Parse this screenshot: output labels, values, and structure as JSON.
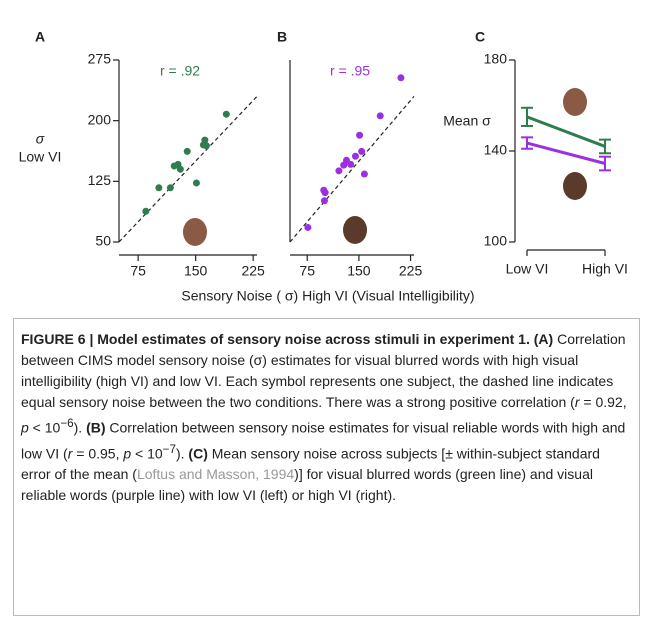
{
  "chart_data": [
    {
      "type": "scatter",
      "panel_label": "A",
      "annotation": "r = .92",
      "ylabel": [
        "σ",
        "Low VI"
      ],
      "color": "#2e7d4f",
      "identity_line": true,
      "xlim": [
        50,
        230
      ],
      "ylim": [
        50,
        275
      ],
      "xticks": [
        75,
        150,
        225
      ],
      "yticks": [
        50,
        125,
        200,
        275
      ],
      "x": [
        85,
        102,
        117,
        122,
        127,
        130,
        139,
        151,
        160,
        162,
        164,
        190
      ],
      "values": [
        88,
        117,
        117,
        144,
        146,
        140,
        162,
        123,
        170,
        176,
        169,
        208
      ]
    },
    {
      "type": "scatter",
      "panel_label": "B",
      "annotation": "r = .95",
      "color": "#9b30e0",
      "identity_line": true,
      "xlim": [
        50,
        230
      ],
      "ylim": [
        50,
        275
      ],
      "xticks": [
        75,
        150,
        225
      ],
      "x": [
        76,
        99,
        100,
        101,
        121,
        128,
        132,
        138,
        145,
        151,
        154,
        158,
        181,
        211
      ],
      "values": [
        68,
        114,
        101,
        111,
        138,
        145,
        151,
        146,
        156,
        182,
        162,
        134,
        206,
        253
      ]
    },
    {
      "type": "line",
      "panel_label": "C",
      "ylabel": "Mean σ",
      "categories": [
        "Low VI",
        "High VI"
      ],
      "ylim": [
        100,
        180
      ],
      "yticks": [
        100,
        140,
        180
      ],
      "series": [
        {
          "color": "#2e7d4f",
          "values": [
            155,
            142
          ],
          "errors": [
            4,
            3
          ]
        },
        {
          "color": "#9b30e0",
          "values": [
            143.5,
            134.5
          ],
          "errors": [
            2.5,
            3
          ]
        }
      ]
    }
  ],
  "xlabel": "Sensory Noise ( σ) High VI (Visual Intelligibility)",
  "caption": {
    "parts": [
      "FIGURE 6 | Model estimates of sensory noise across stimuli in experiment 1. (A)",
      " Correlation between CIMS model sensory noise (σ) estimates for visual blurred words with high visual intelligibility (high VI) and low VI. Each symbol represents one subject, the dashed line indicates equal sensory noise between the two conditions. There was a strong positive correlation (",
      "r",
      " = 0.92, ",
      "p",
      " < 10",
      "−6",
      "). ",
      "(B)",
      " Correlation between sensory noise estimates for visual reliable words with high and low VI (",
      "r",
      " = 0.95, ",
      "p",
      " < 10",
      "−7",
      "). ",
      "(C)",
      " Mean sensory noise across subjects [± within-subject standard error of the mean (",
      "Loftus and Masson, 1994",
      ")] for visual blurred words (green line) and visual reliable words (purple line) with low VI (left) or high VI (right)."
    ]
  }
}
